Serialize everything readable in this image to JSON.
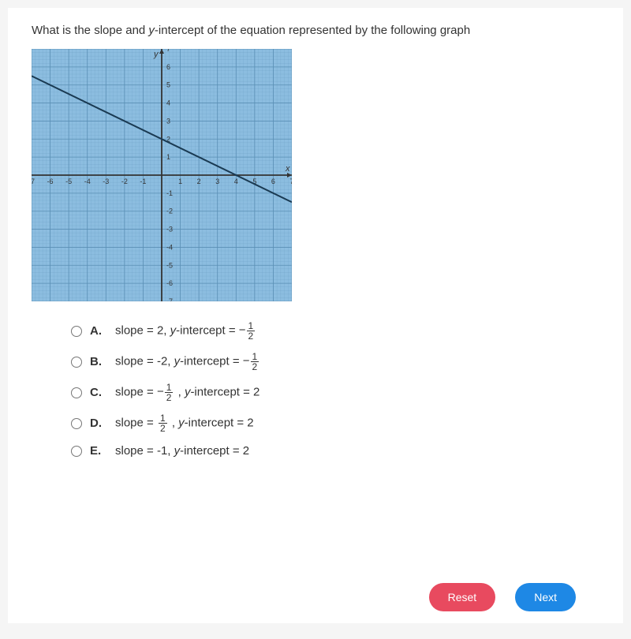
{
  "question": {
    "prefix": "What is the slope and ",
    "italic": "y",
    "suffix": "-intercept of the equation represented by the following graph"
  },
  "graph": {
    "bg": "#8cbde0",
    "grid_color": "#5a8fb5",
    "axis_color": "#333333",
    "line_color": "#1a3a52",
    "label_color": "#333333",
    "x_label": "x",
    "y_label": "y",
    "xlim": [
      -7,
      7
    ],
    "ylim": [
      -7,
      7
    ],
    "x_ticks": [
      -7,
      -6,
      -5,
      -4,
      -3,
      -2,
      -1,
      1,
      2,
      3,
      4,
      5,
      6,
      7
    ],
    "y_ticks": [
      -7,
      -6,
      -5,
      -4,
      -3,
      -2,
      -1,
      1,
      2,
      3,
      4,
      5,
      6,
      7
    ],
    "minor_per_major": 5,
    "line": {
      "slope": -0.5,
      "intercept": 2,
      "x1": -7,
      "x2": 7
    }
  },
  "answers": [
    {
      "letter": "A.",
      "text_pre": "slope = 2, ",
      "ital": "y",
      "text_mid": "-intercept = ",
      "neg": true,
      "frac": {
        "num": "1",
        "den": "2"
      }
    },
    {
      "letter": "B.",
      "text_pre": "slope = -2, ",
      "ital": "y",
      "text_mid": "-intercept = ",
      "neg": true,
      "frac": {
        "num": "1",
        "den": "2"
      }
    },
    {
      "letter": "C.",
      "text_pre": "slope = ",
      "neg_pre": true,
      "frac_pre": {
        "num": "1",
        "den": "2"
      },
      "text_post": " , ",
      "ital": "y",
      "text_mid": "-intercept = 2"
    },
    {
      "letter": "D.",
      "text_pre": "slope = ",
      "frac_pre": {
        "num": "1",
        "den": "2"
      },
      "text_post": " , ",
      "ital": "y",
      "text_mid": "-intercept = 2"
    },
    {
      "letter": "E.",
      "text_pre": "slope = -1, ",
      "ital": "y",
      "text_mid": "-intercept = 2"
    }
  ],
  "buttons": {
    "reset": "Reset",
    "next": "Next"
  }
}
